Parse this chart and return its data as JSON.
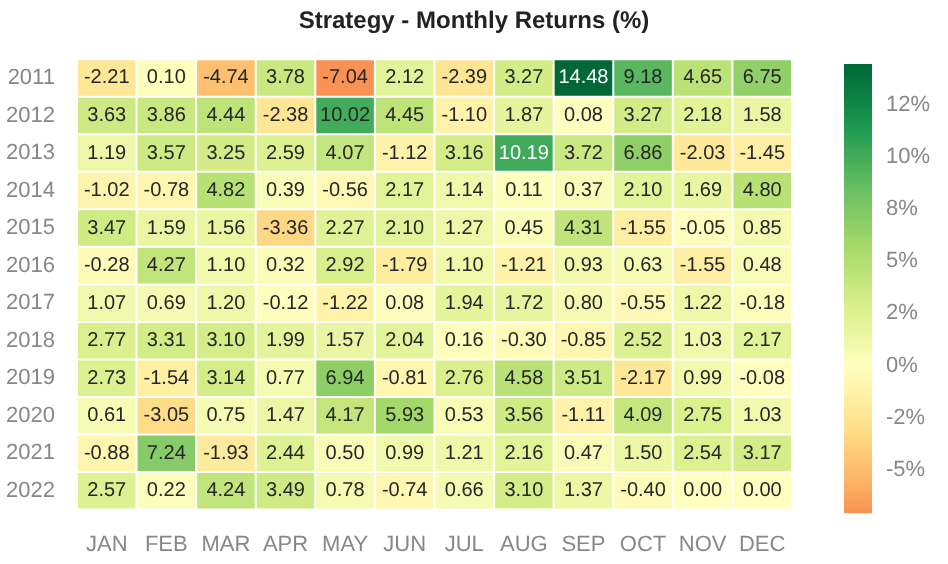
{
  "chart_data": {
    "type": "heatmap",
    "title": "Strategy - Monthly Returns (%)",
    "categories": [
      "JAN",
      "FEB",
      "MAR",
      "APR",
      "MAY",
      "JUN",
      "JUL",
      "AUG",
      "SEP",
      "OCT",
      "NOV",
      "DEC"
    ],
    "y_categories": [
      "2011",
      "2012",
      "2013",
      "2014",
      "2015",
      "2016",
      "2017",
      "2018",
      "2019",
      "2020",
      "2021",
      "2022"
    ],
    "cells": [
      [
        -2.21,
        0.1,
        -4.74,
        3.78,
        -7.04,
        2.12,
        -2.39,
        3.27,
        14.48,
        9.18,
        4.65,
        6.75
      ],
      [
        3.63,
        3.86,
        4.44,
        -2.38,
        10.02,
        4.45,
        -1.1,
        1.87,
        0.08,
        3.27,
        2.18,
        1.58
      ],
      [
        1.19,
        3.57,
        3.25,
        2.59,
        4.07,
        -1.12,
        3.16,
        10.19,
        3.72,
        6.86,
        -2.03,
        -1.45
      ],
      [
        -1.02,
        -0.78,
        4.82,
        0.39,
        -0.56,
        2.17,
        1.14,
        0.11,
        0.37,
        2.1,
        1.69,
        4.8
      ],
      [
        3.47,
        1.59,
        1.56,
        -3.36,
        2.27,
        2.1,
        1.27,
        0.45,
        4.31,
        -1.55,
        -0.05,
        0.85
      ],
      [
        -0.28,
        4.27,
        1.1,
        0.32,
        2.92,
        -1.79,
        1.1,
        -1.21,
        0.93,
        0.63,
        -1.55,
        0.48
      ],
      [
        1.07,
        0.69,
        1.2,
        -0.12,
        -1.22,
        0.08,
        1.94,
        1.72,
        0.8,
        -0.55,
        1.22,
        -0.18
      ],
      [
        2.77,
        3.31,
        3.1,
        1.99,
        1.57,
        2.04,
        0.16,
        -0.3,
        -0.85,
        2.52,
        1.03,
        2.17
      ],
      [
        2.73,
        -1.54,
        3.14,
        0.77,
        6.94,
        -0.81,
        2.76,
        4.58,
        3.51,
        -2.17,
        0.99,
        -0.08
      ],
      [
        0.61,
        -3.05,
        0.75,
        1.47,
        4.17,
        5.93,
        0.53,
        3.56,
        -1.11,
        4.09,
        2.75,
        1.03
      ],
      [
        -0.88,
        7.24,
        -1.93,
        2.44,
        0.5,
        0.99,
        1.21,
        2.16,
        0.47,
        1.5,
        2.54,
        3.17
      ],
      [
        2.57,
        0.22,
        4.24,
        3.49,
        0.78,
        -0.74,
        0.66,
        3.1,
        1.37,
        -0.4,
        0.0,
        0.0
      ]
    ],
    "cell_labels": [
      [
        "-2.21",
        "0.10",
        "-4.74",
        "3.78",
        "-7.04",
        "2.12",
        "-2.39",
        "3.27",
        "14.48",
        "9.18",
        "4.65",
        "6.75"
      ],
      [
        "3.63",
        "3.86",
        "4.44",
        "-2.38",
        "10.02",
        "4.45",
        "-1.10",
        "1.87",
        "0.08",
        "3.27",
        "2.18",
        "1.58"
      ],
      [
        "1.19",
        "3.57",
        "3.25",
        "2.59",
        "4.07",
        "-1.12",
        "3.16",
        "10.19",
        "3.72",
        "6.86",
        "-2.03",
        "-1.45"
      ],
      [
        "-1.02",
        "-0.78",
        "4.82",
        "0.39",
        "-0.56",
        "2.17",
        "1.14",
        "0.11",
        "0.37",
        "2.10",
        "1.69",
        "4.80"
      ],
      [
        "3.47",
        "1.59",
        "1.56",
        "-3.36",
        "2.27",
        "2.10",
        "1.27",
        "0.45",
        "4.31",
        "-1.55",
        "-0.05",
        "0.85"
      ],
      [
        "-0.28",
        "4.27",
        "1.10",
        "0.32",
        "2.92",
        "-1.79",
        "1.10",
        "-1.21",
        "0.93",
        "0.63",
        "-1.55",
        "0.48"
      ],
      [
        "1.07",
        "0.69",
        "1.20",
        "-0.12",
        "-1.22",
        "0.08",
        "1.94",
        "1.72",
        "0.80",
        "-0.55",
        "1.22",
        "-0.18"
      ],
      [
        "2.77",
        "3.31",
        "3.10",
        "1.99",
        "1.57",
        "2.04",
        "0.16",
        "-0.30",
        "-0.85",
        "2.52",
        "1.03",
        "2.17"
      ],
      [
        "2.73",
        "-1.54",
        "3.14",
        "0.77",
        "6.94",
        "-0.81",
        "2.76",
        "4.58",
        "3.51",
        "-2.17",
        "0.99",
        "-0.08"
      ],
      [
        "0.61",
        "-3.05",
        "0.75",
        "1.47",
        "4.17",
        "5.93",
        "0.53",
        "3.56",
        "-1.11",
        "4.09",
        "2.75",
        "1.03"
      ],
      [
        "-0.88",
        "7.24",
        "-1.93",
        "2.44",
        "0.50",
        "0.99",
        "1.21",
        "2.16",
        "0.47",
        "1.50",
        "2.54",
        "3.17"
      ],
      [
        "2.57",
        "0.22",
        "4.24",
        "3.49",
        "0.78",
        "-0.74",
        "0.66",
        "3.10",
        "1.37",
        "-0.40",
        "0.00",
        "0.00"
      ]
    ],
    "clim": [
      -7.04,
      14.48
    ],
    "cticks": [
      {
        "value": 12.5,
        "label": "12%"
      },
      {
        "value": 10,
        "label": "10%"
      },
      {
        "value": 7.5,
        "label": "8%"
      },
      {
        "value": 5,
        "label": "5%"
      },
      {
        "value": 2.5,
        "label": "2%"
      },
      {
        "value": 0,
        "label": "0%"
      },
      {
        "value": -2.5,
        "label": "-2%"
      },
      {
        "value": -5,
        "label": "-5%"
      }
    ],
    "data_labels": true
  }
}
